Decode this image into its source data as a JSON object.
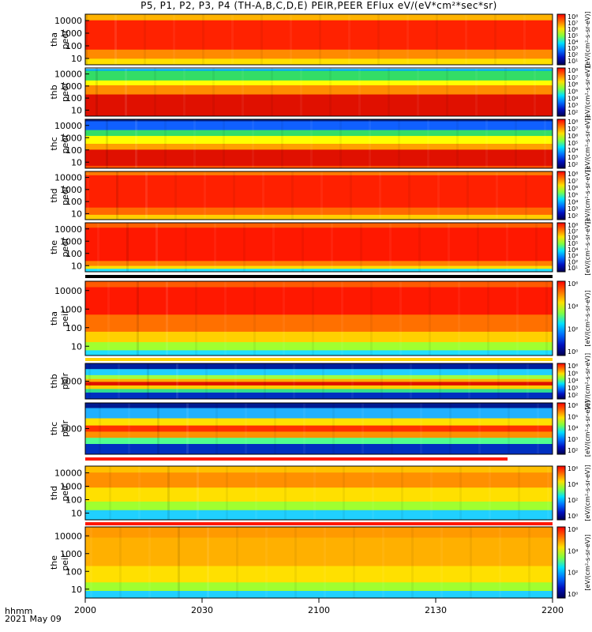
{
  "title": "P5, P1, P2, P3, P4 (TH-A,B,C,D,E) PEIR,PEER EFlux eV/(eV*cm²*sec*sr)",
  "footer": {
    "line1": "hhmm",
    "line2": "2021 May 09"
  },
  "chart_data": {
    "type": "heatmap",
    "x_ticks": [
      "2000",
      "2030",
      "2100",
      "2130",
      "2200"
    ],
    "panels": [
      {
        "label1": "tha",
        "label2": "peer",
        "y_ticks": [
          "10000",
          "1000",
          "100",
          "10"
        ],
        "cb_ticks": [
          "10⁸",
          "10⁷",
          "10⁶",
          "10⁵",
          "10⁴",
          "10³",
          "10²",
          "10¹"
        ],
        "cb_label": "[eV/(cm²-s-sr-eV)]"
      },
      {
        "label1": "thb",
        "label2": "peer",
        "y_ticks": [
          "10000",
          "1000",
          "100",
          "10"
        ],
        "cb_ticks": [
          "10⁸",
          "10⁷",
          "10⁶",
          "10⁵",
          "10⁴",
          "10³",
          "10²"
        ],
        "cb_label": "[eV/(cm²-s-sr-eV)]"
      },
      {
        "label1": "thc",
        "label2": "peer",
        "y_ticks": [
          "10000",
          "1000",
          "100",
          "10"
        ],
        "cb_ticks": [
          "10⁸",
          "10⁷",
          "10⁶",
          "10⁵",
          "10⁴",
          "10³",
          "10²"
        ],
        "cb_label": "[eV/(cm²-s-sr-eV)]"
      },
      {
        "label1": "thd",
        "label2": "peer",
        "y_ticks": [
          "10000",
          "1000",
          "100",
          "10"
        ],
        "cb_ticks": [
          "10⁸",
          "10⁷",
          "10⁶",
          "10⁵",
          "10⁴",
          "10³",
          "10²"
        ],
        "cb_label": "[eV/(cm²-s-sr-eV)]"
      },
      {
        "label1": "the",
        "label2": "peer",
        "y_ticks": [
          "10000",
          "1000",
          "100",
          "10"
        ],
        "cb_ticks": [
          "10⁸",
          "10⁷",
          "10⁶",
          "10⁵",
          "10⁴",
          "10³",
          "10²",
          "10¹"
        ],
        "cb_label": "[eV/(cm²-s-sr-eV)]"
      },
      {
        "label1": "tha",
        "label2": "peir",
        "y_ticks": [
          "10000",
          "1000",
          "100",
          "10"
        ],
        "cb_ticks": [
          "10⁶",
          "10⁴",
          "10²",
          "10⁰"
        ],
        "cb_label": "[eV/(cm²-s-sr-eV)]"
      },
      {
        "label1": "thb",
        "label2": "peir",
        "y_ticks": [
          "1000"
        ],
        "cb_ticks": [
          "10⁶",
          "10⁵",
          "10⁴",
          "10³",
          "10²"
        ],
        "cb_label": "[eV/(cm²-s-sr-eV)]"
      },
      {
        "label1": "thc",
        "label2": "peir",
        "y_ticks": [
          "1000"
        ],
        "cb_ticks": [
          "10⁶",
          "10⁵",
          "10⁴",
          "10³",
          "10²"
        ],
        "cb_label": "[eV/(cm²-s-sr-eV)]"
      },
      {
        "label1": "thd",
        "label2": "peir",
        "y_ticks": [
          "10000",
          "1000",
          "100",
          "10"
        ],
        "cb_ticks": [
          "10⁶",
          "10⁴",
          "10²",
          "10⁰"
        ],
        "cb_label": "[eV/(cm²-s-sr-eV)]"
      },
      {
        "label1": "the",
        "label2": "peir",
        "y_ticks": [
          "10000",
          "1000",
          "100",
          "10"
        ],
        "cb_ticks": [
          "10⁶",
          "10⁴",
          "10²",
          "10⁰"
        ],
        "cb_label": "[eV/(cm²-s-sr-eV)]"
      }
    ]
  }
}
